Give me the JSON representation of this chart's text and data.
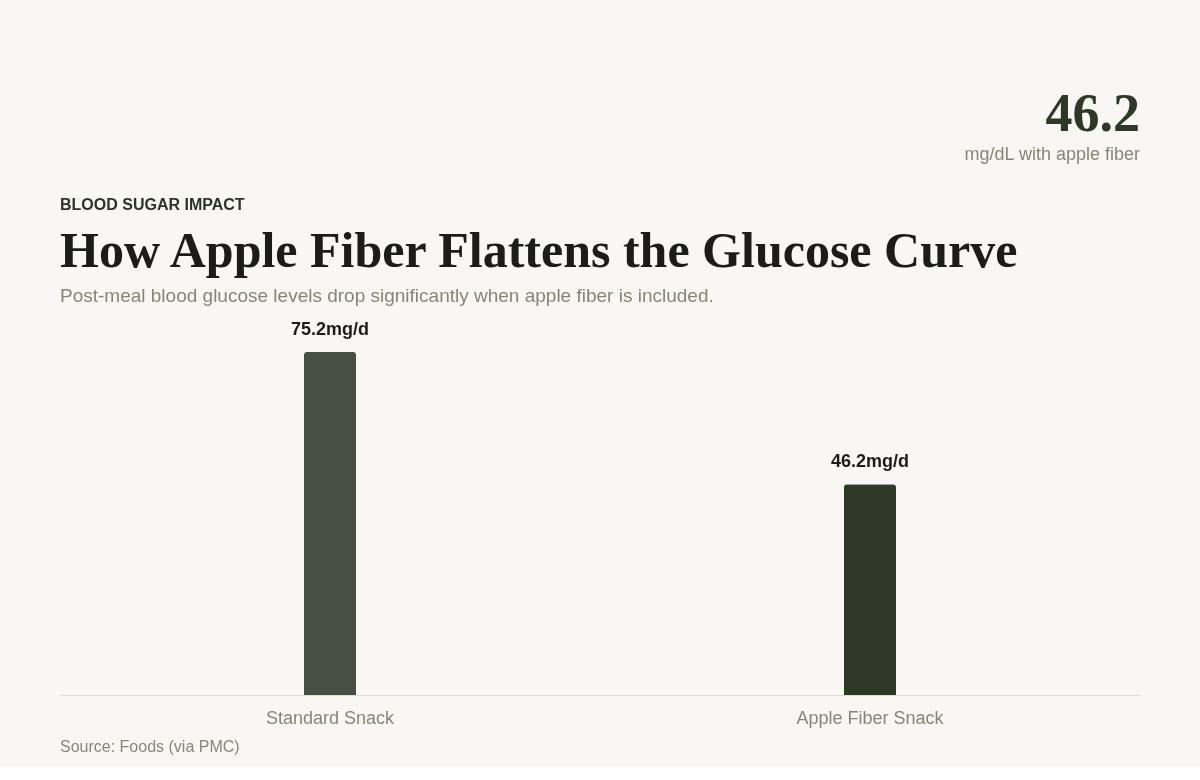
{
  "chart_data": {
    "type": "bar",
    "title": "How Apple Fiber Flattens the Glucose Curve",
    "subtitle": "Post-meal blood glucose levels drop significantly when apple fiber is included.",
    "categories": [
      "Standard Snack",
      "Apple Fiber Snack"
    ],
    "values": [
      75.2,
      46.2
    ],
    "value_labels": [
      "75.2mg/d",
      "46.2mg/d"
    ],
    "colors": [
      "#474e42",
      "#2d3826"
    ],
    "annotations": [
      "BLOOD SUGAR IMPACT",
      "46.2",
      "mg/dL with apple fiber",
      "Source: Foods (via PMC)"
    ],
    "grid": false,
    "legend": false
  }
}
